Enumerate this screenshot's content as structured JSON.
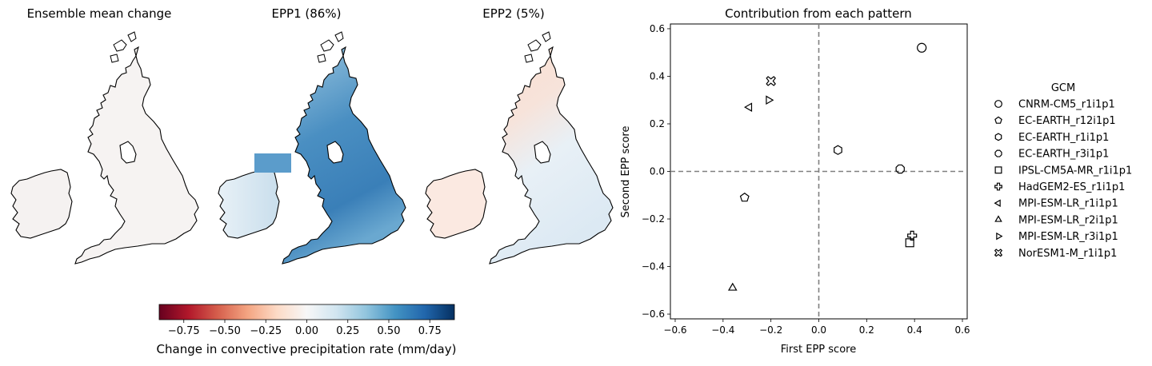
{
  "maps": {
    "titles": [
      "Ensemble mean change",
      "EPP1 (86%)",
      "EPP2 (5%)"
    ]
  },
  "colorbar": {
    "label": "Change in convective precipitation rate (mm/day)",
    "ticks": [
      "−0.75",
      "−0.50",
      "−0.25",
      "0.00",
      "0.25",
      "0.50",
      "0.75"
    ],
    "tick_values": [
      -0.75,
      -0.5,
      -0.25,
      0,
      0.25,
      0.5,
      0.75
    ],
    "range": [
      -0.9,
      0.9
    ],
    "colormap": "RdBu",
    "colors": [
      "#67001f",
      "#b2182b",
      "#d6604d",
      "#f4a582",
      "#fddbc7",
      "#f7f7f7",
      "#d1e5f0",
      "#92c5de",
      "#4393c3",
      "#2166ac",
      "#053061"
    ]
  },
  "chart_data": {
    "type": "scatter",
    "title": "Contribution from each pattern",
    "xlabel": "First EPP score",
    "ylabel": "Second EPP score",
    "xlim": [
      -0.62,
      0.62
    ],
    "ylim": [
      -0.62,
      0.62
    ],
    "xticks": [
      "−0.6",
      "−0.4",
      "−0.2",
      "0.0",
      "0.2",
      "0.4",
      "0.6"
    ],
    "yticks": [
      "−0.6",
      "−0.4",
      "−0.2",
      "0.0",
      "0.2",
      "0.4",
      "0.6"
    ],
    "tick_values": [
      -0.6,
      -0.4,
      -0.2,
      0,
      0.2,
      0.4,
      0.6
    ],
    "reference_lines": {
      "x": 0,
      "y": 0,
      "style": "dashed",
      "color": "#808080"
    },
    "grid": false,
    "legend_title": "GCM",
    "legend_position": "right, outside",
    "points": [
      {
        "name": "CNRM-CM5_r1i1p1",
        "marker": "circle",
        "x": 0.43,
        "y": 0.52
      },
      {
        "name": "EC-EARTH_r12i1p1",
        "marker": "pentagon",
        "x": -0.31,
        "y": -0.11
      },
      {
        "name": "EC-EARTH_r1i1p1",
        "marker": "hexagon",
        "x": 0.08,
        "y": 0.09
      },
      {
        "name": "EC-EARTH_r3i1p1",
        "marker": "octagon",
        "x": 0.34,
        "y": 0.01
      },
      {
        "name": "IPSL-CM5A-MR_r1i1p1",
        "marker": "square",
        "x": 0.38,
        "y": -0.3
      },
      {
        "name": "HadGEM2-ES_r1i1p1",
        "marker": "plus",
        "x": 0.39,
        "y": -0.27
      },
      {
        "name": "MPI-ESM-LR_r1i1p1",
        "marker": "triangle-left",
        "x": -0.29,
        "y": 0.27
      },
      {
        "name": "MPI-ESM-LR_r2i1p1",
        "marker": "triangle-up",
        "x": -0.36,
        "y": -0.49
      },
      {
        "name": "MPI-ESM-LR_r3i1p1",
        "marker": "triangle-right",
        "x": -0.21,
        "y": 0.3
      },
      {
        "name": "NorESM1-M_r1i1p1",
        "marker": "x-filled",
        "x": -0.2,
        "y": 0.38
      }
    ]
  }
}
